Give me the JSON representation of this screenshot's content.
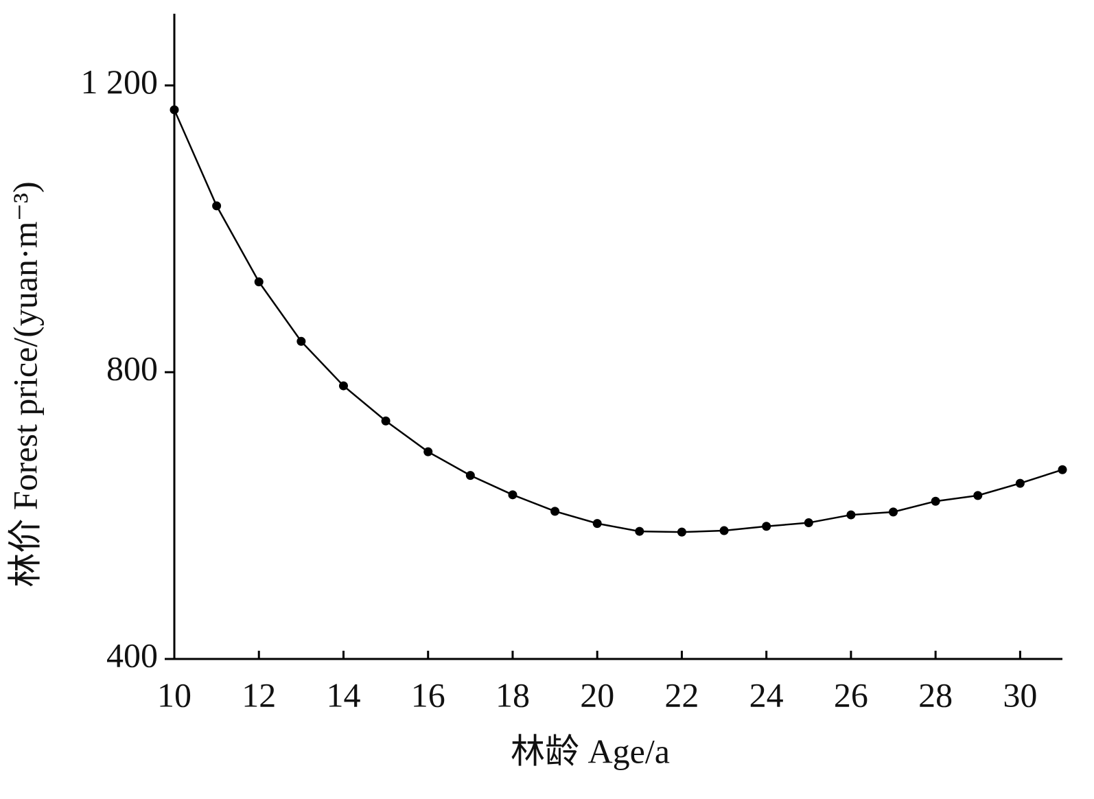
{
  "chart_data": {
    "type": "line",
    "x_label": "林龄 Age/a",
    "y_label": "林价 Forest price/(yuan·m⁻³)",
    "x": [
      10,
      11,
      12,
      13,
      14,
      15,
      16,
      17,
      18,
      19,
      20,
      21,
      22,
      23,
      24,
      25,
      26,
      27,
      28,
      29,
      30,
      31
    ],
    "series": [
      {
        "color": "#000000",
        "values": [
          1166,
          1032,
          926,
          843,
          781,
          732,
          689,
          656,
          629,
          606,
          589,
          578,
          577,
          579,
          585,
          590,
          601,
          605,
          620,
          628,
          645,
          664
        ]
      }
    ],
    "xlim": [
      10,
      31
    ],
    "xticks": [
      10,
      12,
      14,
      16,
      18,
      20,
      22,
      24,
      26,
      28,
      30
    ],
    "ylim": [
      400,
      1300
    ],
    "yticks": [
      400,
      800,
      {
        "value": 1200,
        "label": "1 200"
      }
    ],
    "grid": false
  }
}
